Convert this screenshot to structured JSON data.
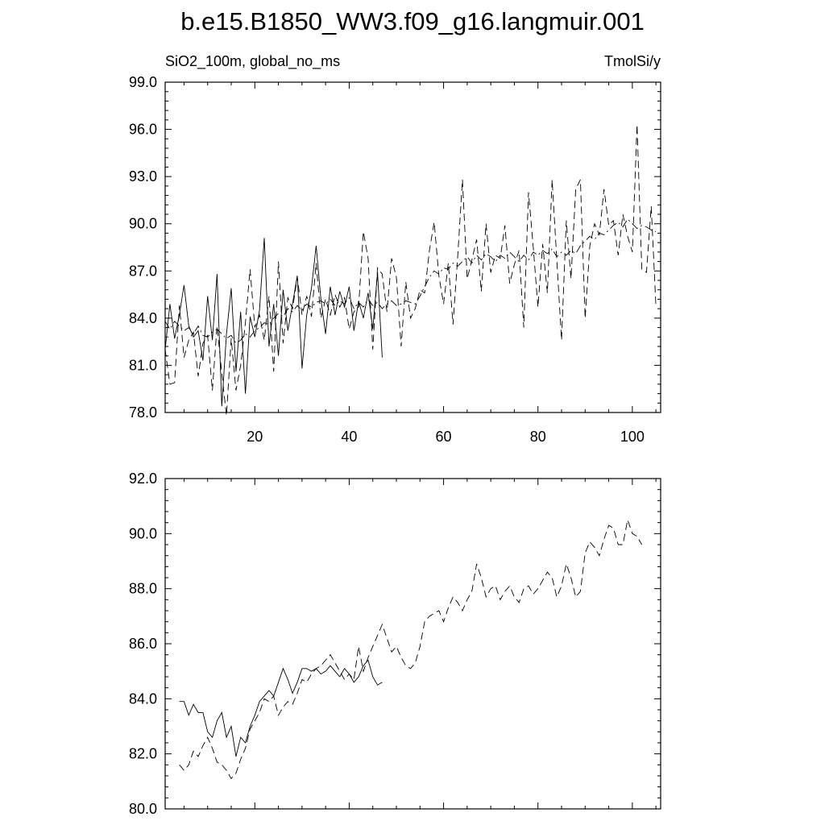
{
  "figure_title": "b.e15.B1850_WW3.f09_g16.langmuir.001",
  "chart_data": [
    {
      "type": "line",
      "title": "",
      "left_label": "SiO2_100m, global_no_ms",
      "right_label": "TmolSi/y",
      "xlim": [
        1,
        106
      ],
      "ylim": [
        78.0,
        99.0
      ],
      "x_ticks": [
        20,
        40,
        60,
        80,
        100
      ],
      "x_tick_labels": [
        "20",
        "40",
        "60",
        "80",
        "100"
      ],
      "y_ticks": [
        78.0,
        81.0,
        84.0,
        87.0,
        90.0,
        93.0,
        96.0,
        99.0
      ],
      "y_tick_labels": [
        "78.0",
        "81.0",
        "84.0",
        "87.0",
        "90.0",
        "93.0",
        "96.0",
        "99.0"
      ],
      "grid": false,
      "series": [
        {
          "style": "solid",
          "x": [
            1,
            2,
            3,
            4,
            5,
            6,
            7,
            8,
            9,
            10,
            11,
            12,
            13,
            14,
            15,
            16,
            17,
            18,
            19,
            20,
            21,
            22,
            23,
            24,
            25,
            26,
            27,
            28,
            29,
            30,
            31,
            32,
            33,
            34,
            35,
            36,
            37,
            38,
            39,
            40,
            41,
            42,
            43,
            44,
            45,
            46,
            47
          ],
          "values": [
            82.0,
            84.9,
            82.7,
            84.2,
            86.1,
            83.5,
            82.8,
            83.2,
            81.3,
            85.4,
            82.6,
            86.8,
            78.4,
            83.0,
            85.9,
            80.6,
            84.4,
            79.2,
            84.1,
            82.8,
            84.5,
            89.1,
            82.2,
            84.9,
            81.6,
            85.8,
            83.2,
            84.9,
            86.7,
            80.8,
            84.2,
            85.9,
            88.6,
            85.2,
            83.0,
            86.0,
            84.2,
            85.7,
            84.7,
            86.0,
            83.2,
            85.1,
            84.0,
            85.6,
            83.3,
            86.9,
            81.5
          ]
        },
        {
          "style": "dashed",
          "x": [
            1,
            2,
            3,
            4,
            5,
            6,
            7,
            8,
            9,
            10,
            11,
            12,
            13,
            14,
            15,
            16,
            17,
            18,
            19,
            20,
            21,
            22,
            23,
            24,
            25,
            26,
            27,
            28,
            29,
            30,
            31,
            32,
            33,
            34,
            35,
            36,
            37,
            38,
            39,
            40,
            41,
            42,
            43,
            44,
            45,
            46,
            47,
            48,
            49,
            50,
            51,
            52,
            53,
            54,
            55,
            56,
            57,
            58,
            59,
            60,
            61,
            62,
            63,
            64,
            65,
            66,
            67,
            68,
            69,
            70,
            71,
            72,
            73,
            74,
            75,
            76,
            77,
            78,
            79,
            80,
            81,
            82,
            83,
            84,
            85,
            86,
            87,
            88,
            89,
            90,
            91,
            92,
            93,
            94,
            95,
            96,
            97,
            98,
            99,
            100,
            101,
            102,
            103,
            104,
            105
          ],
          "values": [
            82.0,
            79.8,
            79.9,
            84.8,
            81.5,
            82.6,
            83.1,
            80.3,
            82.4,
            82.9,
            79.4,
            83.5,
            80.5,
            77.8,
            82.7,
            79.4,
            81.0,
            83.7,
            87.1,
            83.4,
            84.2,
            82.6,
            85.4,
            80.6,
            87.6,
            82.4,
            85.3,
            84.6,
            86.6,
            84.2,
            85.4,
            84.1,
            87.5,
            84.0,
            85.2,
            84.2,
            85.5,
            84.7,
            85.3,
            83.3,
            84.4,
            84.7,
            89.5,
            87.8,
            82.0,
            87.2,
            86.8,
            84.4,
            87.8,
            86.6,
            82.2,
            86.3,
            84.0,
            84.6,
            85.8,
            85.6,
            88.3,
            90.1,
            86.7,
            84.9,
            87.5,
            83.6,
            87.9,
            92.8,
            86.5,
            87.7,
            89.0,
            85.7,
            90.0,
            86.9,
            88.0,
            87.8,
            89.9,
            86.2,
            87.4,
            88.3,
            83.4,
            92.0,
            88.5,
            84.7,
            88.7,
            85.6,
            92.8,
            87.7,
            82.6,
            90.2,
            86.5,
            92.2,
            92.8,
            84.0,
            88.6,
            90.0,
            89.3,
            92.2,
            89.9,
            90.2,
            88.0,
            90.6,
            89.2,
            88.2,
            96.3,
            87.1,
            86.9,
            91.1,
            84.8
          ]
        },
        {
          "style": "dashdot",
          "x": [
            1,
            2,
            3,
            4,
            5,
            6,
            7,
            8,
            9,
            10,
            11,
            12,
            13,
            14,
            15,
            16,
            17,
            18,
            19,
            20,
            21,
            22,
            23,
            24,
            25,
            26,
            27,
            28,
            29,
            30,
            31,
            32,
            33,
            34,
            35,
            36,
            37,
            38,
            39,
            40,
            41,
            42,
            43,
            44,
            45,
            46,
            47,
            48,
            49,
            50,
            51,
            52,
            53,
            54,
            55,
            56,
            57,
            58,
            59,
            60,
            61,
            62,
            63,
            64,
            65,
            66,
            67,
            68,
            69,
            70,
            71,
            72,
            73,
            74,
            75,
            76,
            77,
            78,
            79,
            80,
            81,
            82,
            83,
            84,
            85,
            86,
            87,
            88,
            89,
            90,
            91,
            92,
            93,
            94,
            95,
            96,
            97,
            98,
            99,
            100,
            101,
            102,
            103,
            104,
            105
          ],
          "values": [
            83.8,
            83.3,
            83.8,
            83.5,
            83.2,
            83.4,
            83.0,
            83.5,
            82.9,
            82.8,
            83.1,
            83.3,
            83.0,
            82.7,
            82.9,
            82.4,
            82.6,
            83.0,
            82.8,
            83.2,
            83.4,
            83.7,
            83.6,
            84.0,
            84.3,
            84.1,
            84.6,
            84.4,
            84.8,
            84.5,
            84.9,
            84.7,
            85.0,
            85.1,
            84.9,
            85.2,
            84.8,
            85.1,
            84.9,
            85.3,
            84.6,
            85.0,
            84.7,
            85.2,
            84.8,
            85.0,
            84.6,
            84.9,
            85.1,
            84.8,
            84.9,
            85.1,
            85.0,
            84.9,
            85.4,
            86.0,
            86.6,
            87.0,
            86.8,
            87.2,
            87.1,
            87.5,
            87.3,
            87.6,
            87.9,
            87.5,
            88.0,
            87.7,
            88.1,
            87.9,
            87.6,
            88.0,
            87.8,
            88.2,
            87.9,
            87.6,
            88.0,
            87.7,
            88.2,
            88.0,
            88.3,
            88.1,
            88.4,
            87.9,
            88.2,
            88.0,
            88.3,
            88.1,
            88.6,
            88.9,
            89.2,
            89.0,
            89.4,
            89.3,
            89.6,
            89.9,
            90.1,
            89.8,
            90.3,
            90.0,
            89.7,
            89.9,
            89.8,
            89.6,
            89.5
          ]
        }
      ]
    },
    {
      "type": "line",
      "title": "",
      "xlim": [
        1,
        106
      ],
      "ylim": [
        80.0,
        92.0
      ],
      "x_ticks": [
        20,
        40,
        60,
        80,
        100
      ],
      "y_ticks": [
        80.0,
        82.0,
        84.0,
        86.0,
        88.0,
        90.0,
        92.0
      ],
      "y_tick_labels": [
        "80.0",
        "82.0",
        "84.0",
        "86.0",
        "88.0",
        "90.0",
        "92.0"
      ],
      "grid": false,
      "series": [
        {
          "style": "solid",
          "x": [
            4,
            5,
            6,
            7,
            8,
            9,
            10,
            11,
            12,
            13,
            14,
            15,
            16,
            17,
            18,
            19,
            20,
            21,
            22,
            23,
            24,
            25,
            26,
            27,
            28,
            29,
            30,
            31,
            32,
            33,
            34,
            35,
            36,
            37,
            38,
            39,
            40,
            41,
            42,
            43,
            44,
            45,
            46,
            47
          ],
          "values": [
            83.9,
            83.9,
            83.4,
            83.8,
            83.5,
            83.5,
            82.8,
            82.6,
            83.2,
            83.5,
            82.6,
            83.0,
            81.9,
            82.6,
            82.4,
            83.0,
            83.4,
            83.9,
            84.1,
            84.3,
            84.1,
            84.6,
            85.1,
            84.7,
            84.2,
            84.6,
            85.1,
            85.1,
            85.0,
            85.1,
            84.9,
            85.0,
            85.2,
            85.0,
            84.8,
            85.1,
            84.9,
            84.6,
            84.8,
            85.2,
            85.4,
            84.8,
            84.5,
            84.6
          ]
        },
        {
          "style": "dashed",
          "x": [
            4,
            5,
            6,
            7,
            8,
            9,
            10,
            11,
            12,
            13,
            14,
            15,
            16,
            17,
            18,
            19,
            20,
            21,
            22,
            23,
            24,
            25,
            26,
            27,
            28,
            29,
            30,
            31,
            32,
            33,
            34,
            35,
            36,
            37,
            38,
            39,
            40,
            41,
            42,
            43,
            44,
            45,
            46,
            47,
            48,
            49,
            50,
            51,
            52,
            53,
            54,
            55,
            56,
            57,
            58,
            59,
            60,
            61,
            62,
            63,
            64,
            65,
            66,
            67,
            68,
            69,
            70,
            71,
            72,
            73,
            74,
            75,
            76,
            77,
            78,
            79,
            80,
            81,
            82,
            83,
            84,
            85,
            86,
            87,
            88,
            89,
            90,
            91,
            92,
            93,
            94,
            95,
            96,
            97,
            98,
            99,
            100,
            101,
            102
          ],
          "values": [
            81.6,
            81.4,
            81.6,
            82.1,
            81.9,
            82.3,
            82.6,
            82.2,
            81.7,
            81.6,
            81.4,
            81.1,
            81.3,
            81.8,
            82.2,
            82.9,
            83.2,
            83.5,
            84.0,
            83.9,
            84.1,
            83.4,
            83.7,
            83.9,
            83.8,
            84.2,
            84.7,
            84.6,
            84.9,
            85.1,
            85.2,
            85.4,
            85.6,
            85.3,
            85.0,
            84.7,
            84.9,
            84.7,
            85.9,
            85.0,
            85.5,
            85.9,
            86.3,
            86.7,
            86.2,
            85.7,
            85.9,
            85.5,
            85.2,
            85.1,
            85.3,
            85.9,
            86.8,
            87.0,
            87.1,
            87.2,
            86.8,
            87.3,
            87.7,
            87.5,
            87.2,
            87.6,
            87.9,
            88.9,
            88.4,
            87.7,
            88.0,
            88.1,
            87.6,
            87.9,
            88.1,
            87.7,
            87.5,
            88.0,
            88.1,
            87.8,
            88.0,
            88.3,
            88.6,
            88.4,
            87.7,
            88.1,
            88.9,
            88.4,
            87.7,
            87.9,
            89.3,
            89.7,
            89.5,
            89.2,
            89.8,
            90.3,
            90.2,
            89.6,
            89.6,
            90.5,
            90.0,
            89.9,
            89.6
          ]
        }
      ]
    }
  ]
}
